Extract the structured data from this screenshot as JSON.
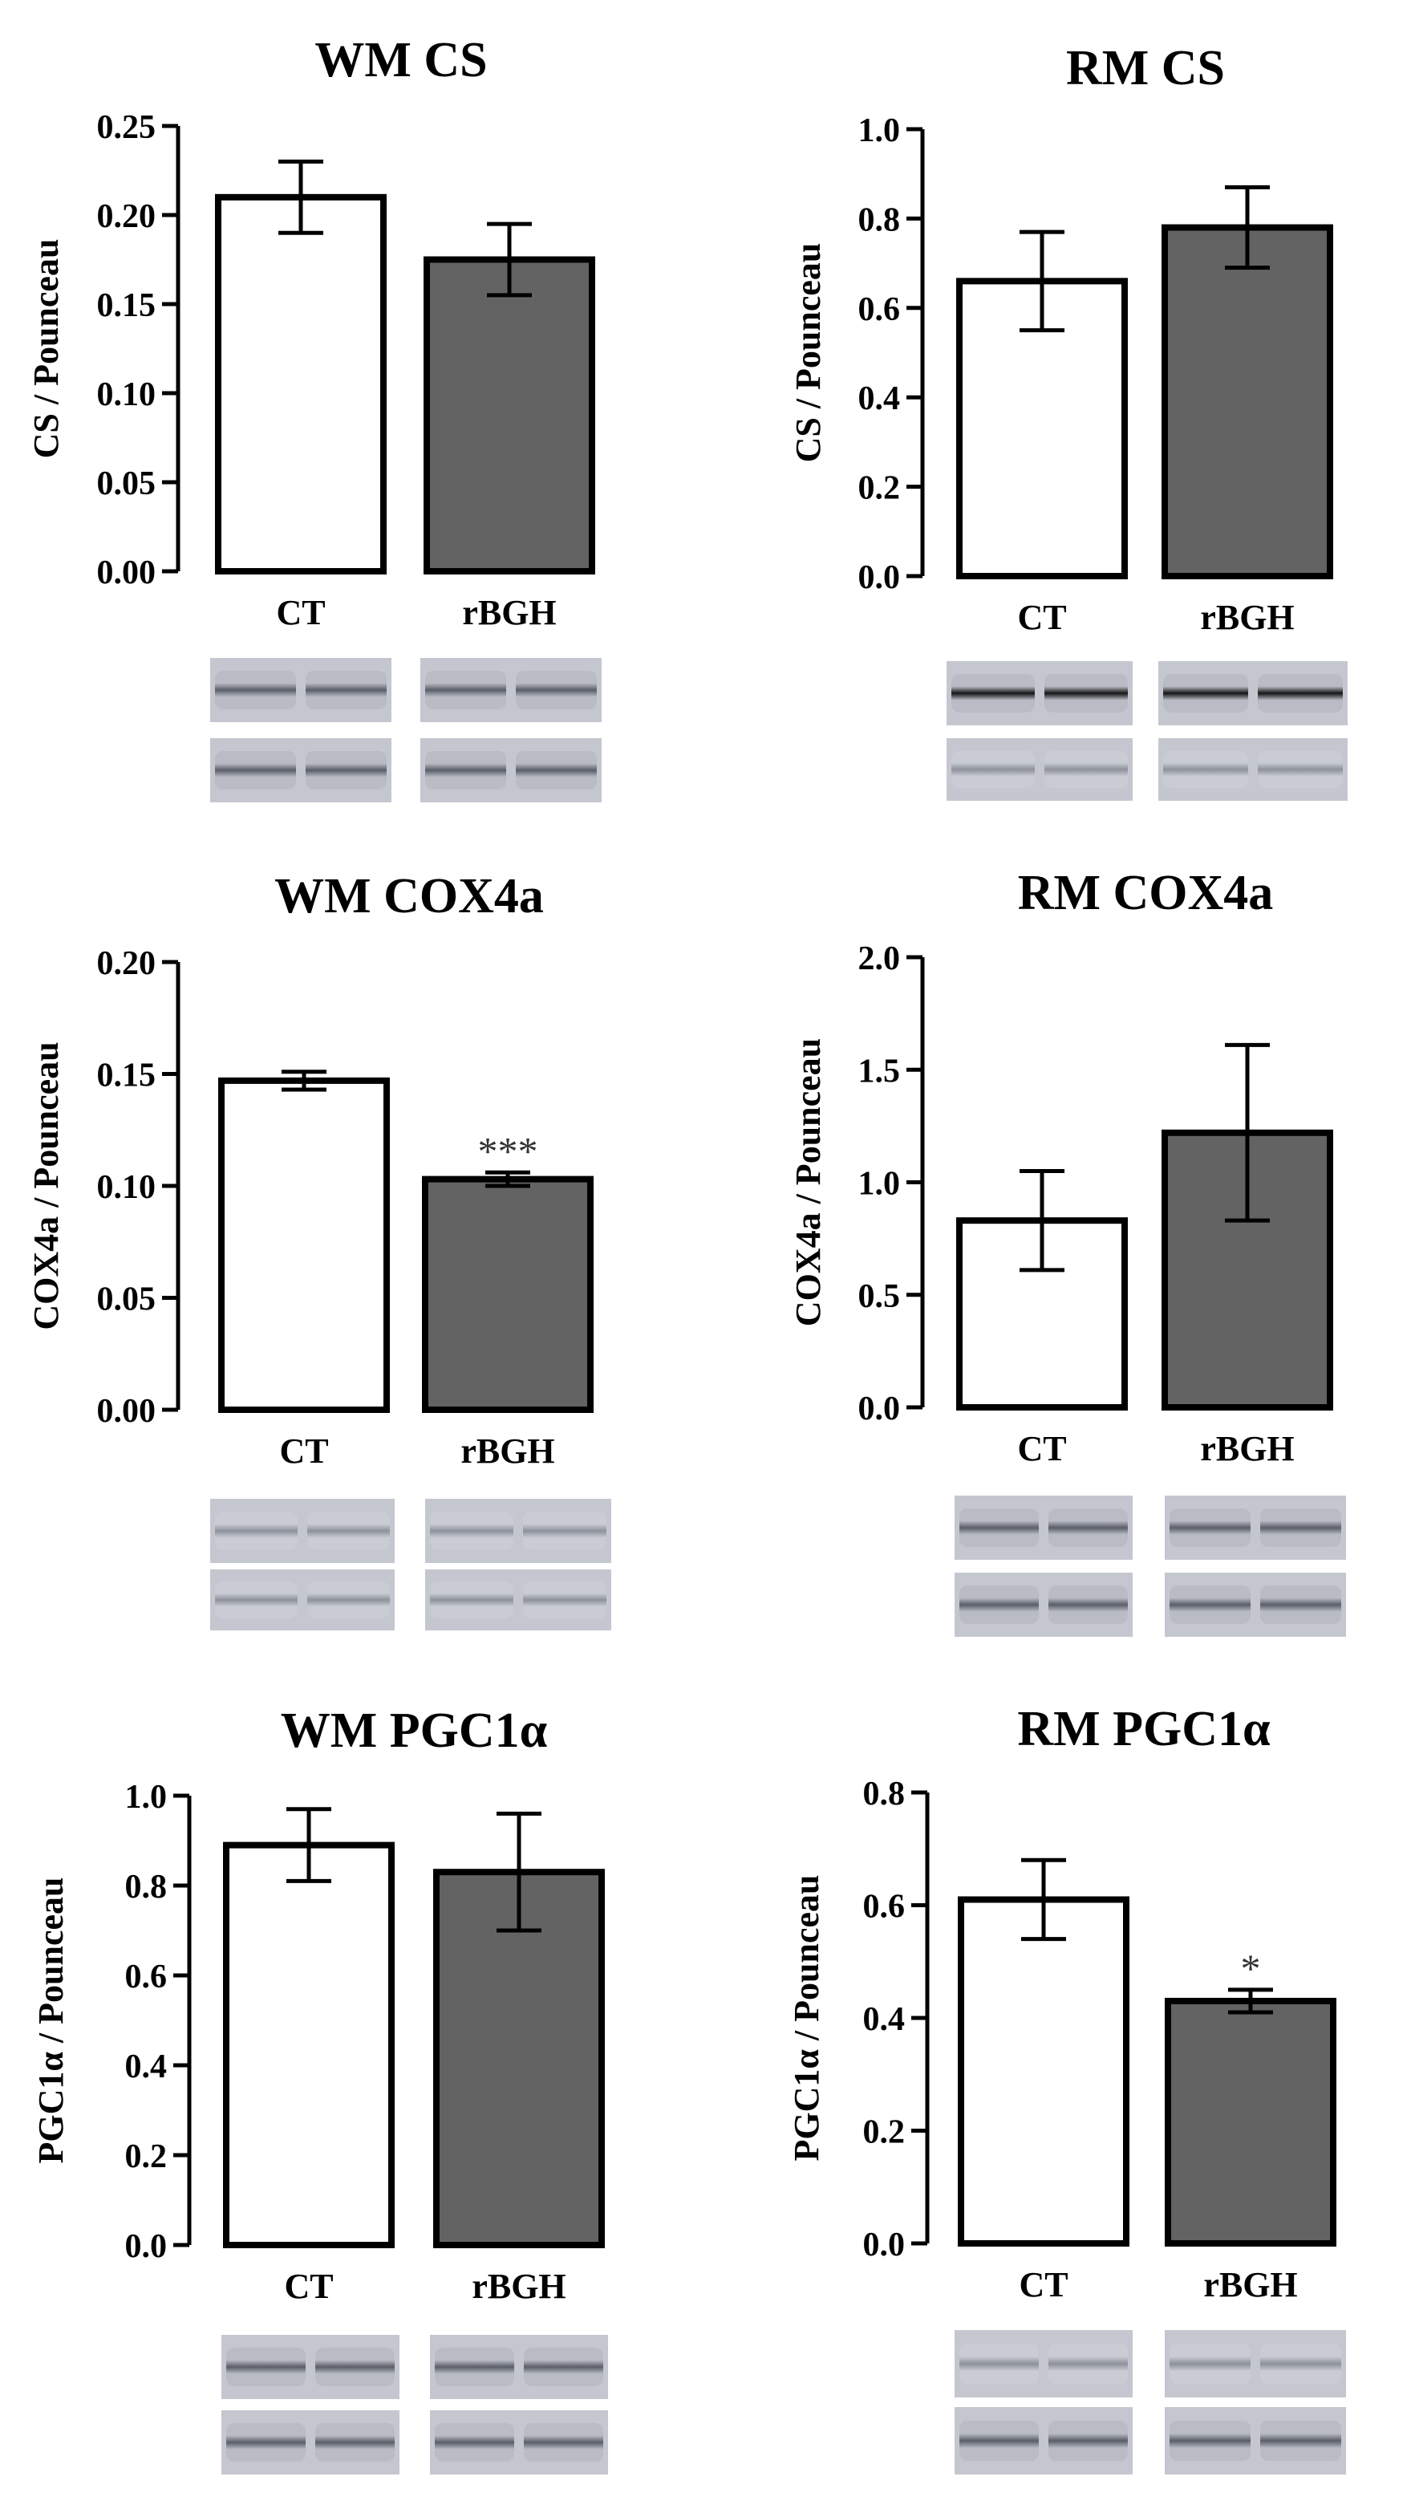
{
  "figure": {
    "colors": {
      "ct_fill": "#ffffff",
      "rbgh_fill": "#636363",
      "stroke": "#000000"
    }
  },
  "chart_data": [
    {
      "type": "bar",
      "title": "WM CS",
      "ylabel": "CS / Pounceau",
      "xlabel": "",
      "categories": [
        "CT",
        "rBGH"
      ],
      "values": [
        0.21,
        0.175
      ],
      "errors": [
        0.02,
        0.02
      ],
      "ylim": [
        0,
        0.25
      ],
      "yticks": [
        "0.00",
        "0.05",
        "0.10",
        "0.15",
        "0.20",
        "0.25"
      ],
      "annotations": [
        "",
        ""
      ]
    },
    {
      "type": "bar",
      "title": "RM CS",
      "ylabel": "CS / Pounceau",
      "xlabel": "",
      "categories": [
        "CT",
        "rBGH"
      ],
      "values": [
        0.66,
        0.78
      ],
      "errors": [
        0.11,
        0.09
      ],
      "ylim": [
        0,
        1.0
      ],
      "yticks": [
        "0.0",
        "0.2",
        "0.4",
        "0.6",
        "0.8",
        "1.0"
      ],
      "annotations": [
        "",
        ""
      ]
    },
    {
      "type": "bar",
      "title": "WM COX4a",
      "ylabel": "COX4a / Pounceau",
      "xlabel": "",
      "categories": [
        "CT",
        "rBGH"
      ],
      "values": [
        0.147,
        0.103
      ],
      "errors": [
        0.004,
        0.003
      ],
      "ylim": [
        0,
        0.2
      ],
      "yticks": [
        "0.00",
        "0.05",
        "0.10",
        "0.15",
        "0.20"
      ],
      "annotations": [
        "",
        "***"
      ]
    },
    {
      "type": "bar",
      "title": "RM COX4a",
      "ylabel": "COX4a / Pounceau",
      "xlabel": "",
      "categories": [
        "CT",
        "rBGH"
      ],
      "values": [
        0.83,
        1.22
      ],
      "errors": [
        0.22,
        0.39
      ],
      "ylim": [
        0,
        2.0
      ],
      "yticks": [
        "0.0",
        "0.5",
        "1.0",
        "1.5",
        "2.0"
      ],
      "annotations": [
        "",
        ""
      ]
    },
    {
      "type": "bar",
      "title": "WM PGC1α",
      "ylabel": "PGC1α / Pounceau",
      "xlabel": "",
      "categories": [
        "CT",
        "rBGH"
      ],
      "values": [
        0.89,
        0.83
      ],
      "errors": [
        0.08,
        0.13
      ],
      "ylim": [
        0,
        1.0
      ],
      "yticks": [
        "0.0",
        "0.2",
        "0.4",
        "0.6",
        "0.8",
        "1.0"
      ],
      "annotations": [
        "",
        ""
      ]
    },
    {
      "type": "bar",
      "title": "RM PGC1α",
      "ylabel": "PGC1α / Pounceau",
      "xlabel": "",
      "categories": [
        "CT",
        "rBGH"
      ],
      "values": [
        0.61,
        0.43
      ],
      "errors": [
        0.07,
        0.02
      ],
      "ylim": [
        0,
        0.8
      ],
      "yticks": [
        "0.0",
        "0.2",
        "0.4",
        "0.6",
        "0.8"
      ],
      "annotations": [
        "",
        "*"
      ]
    }
  ]
}
